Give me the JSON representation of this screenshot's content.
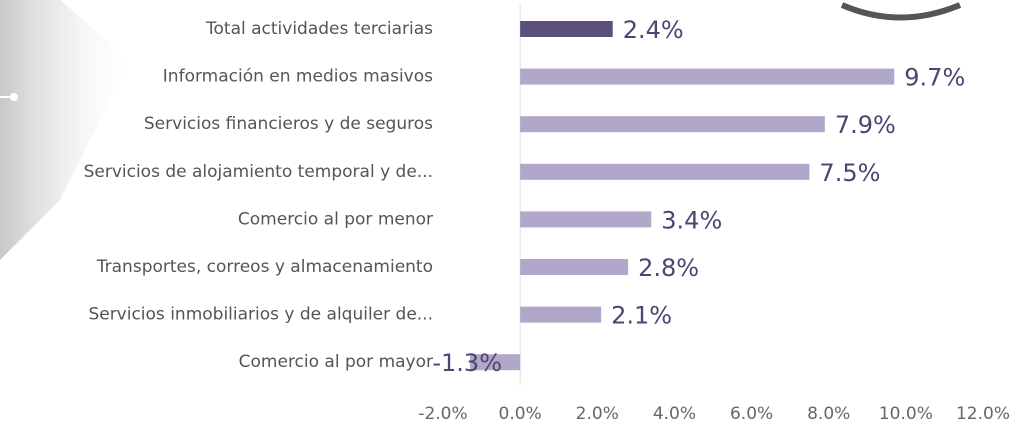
{
  "chart_data": {
    "type": "bar",
    "orientation": "horizontal",
    "categories": [
      "Total actividades terciarias",
      "Información en medios masivos",
      "Servicios financieros y de seguros",
      "Servicios de alojamiento temporal y de...",
      "Comercio al por menor",
      "Transportes, correos y almacenamiento",
      "Servicios inmobiliarios y de alquiler de...",
      "Comercio al por mayor"
    ],
    "values": [
      2.4,
      9.7,
      7.9,
      7.5,
      3.4,
      2.8,
      2.1,
      -1.3
    ],
    "value_labels": [
      "2.4%",
      "9.7%",
      "7.9%",
      "7.5%",
      "3.4%",
      "2.8%",
      "2.1%",
      "-1.3%"
    ],
    "colors": [
      "#5b4f7e",
      "#b0a7c9",
      "#b0a7c9",
      "#b0a7c9",
      "#b0a7c9",
      "#b0a7c9",
      "#b0a7c9",
      "#b0a7c9"
    ],
    "xlim": [
      -2,
      12
    ],
    "xticks": [
      {
        "value": -2,
        "label": "-2.0%"
      },
      {
        "value": 0,
        "label": "0.0%"
      },
      {
        "value": 2,
        "label": "2.0%"
      },
      {
        "value": 4,
        "label": "4.0%"
      },
      {
        "value": 6,
        "label": "6.0%"
      },
      {
        "value": 8,
        "label": "8.0%"
      },
      {
        "value": 10,
        "label": "10.0%"
      },
      {
        "value": 12,
        "label": "12.0%"
      }
    ]
  }
}
